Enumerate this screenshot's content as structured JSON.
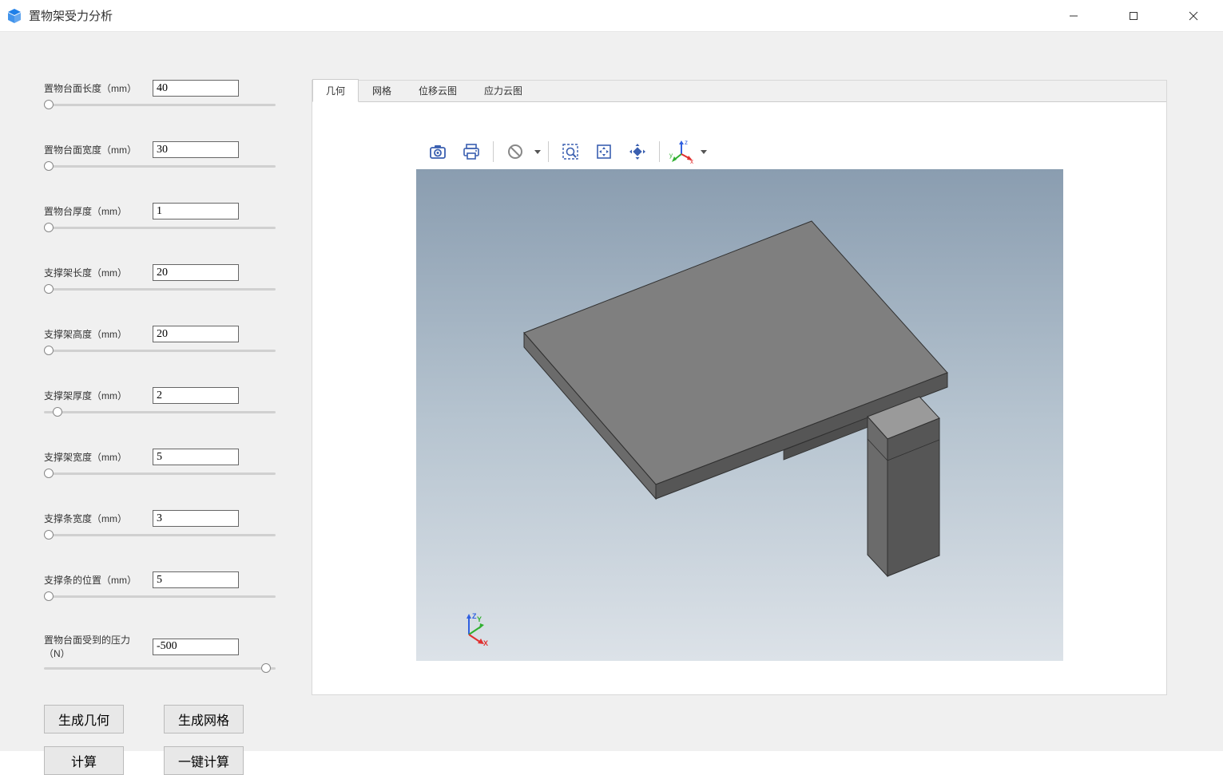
{
  "app": {
    "title": "置物架受力分析"
  },
  "parameters": [
    {
      "label": "置物台面长度（mm）",
      "value": "40",
      "thumb_pct": 2
    },
    {
      "label": "置物台面宽度（mm）",
      "value": "30",
      "thumb_pct": 2
    },
    {
      "label": "置物台厚度（mm）",
      "value": "1",
      "thumb_pct": 2
    },
    {
      "label": "支撑架长度（mm）",
      "value": "20",
      "thumb_pct": 2
    },
    {
      "label": "支撑架高度（mm）",
      "value": "20",
      "thumb_pct": 2
    },
    {
      "label": "支撑架厚度（mm）",
      "value": "2",
      "thumb_pct": 6
    },
    {
      "label": "支撑架宽度（mm）",
      "value": "5",
      "thumb_pct": 2
    },
    {
      "label": "支撑条宽度（mm）",
      "value": "3",
      "thumb_pct": 2
    },
    {
      "label": "支撑条的位置（mm）",
      "value": "5",
      "thumb_pct": 2
    },
    {
      "label": "置物台面受到的压力（N）",
      "value": "-500",
      "thumb_pct": 96
    }
  ],
  "buttons": {
    "generate_geometry": "生成几何",
    "generate_mesh": "生成网格",
    "calculate": "计算",
    "one_click_calc": "一键计算"
  },
  "tabs": [
    {
      "label": "几何",
      "active": true
    },
    {
      "label": "网格",
      "active": false
    },
    {
      "label": "位移云图",
      "active": false
    },
    {
      "label": "应力云图",
      "active": false
    }
  ],
  "toolbar_icons": {
    "snapshot": "snapshot-icon",
    "print": "print-icon",
    "bullseye": "bullseye-icon",
    "zoom_box": "zoom-box-icon",
    "pan": "pan-icon",
    "zoom_extents": "zoom-extents-icon",
    "axis": "axis-xyz-icon"
  },
  "geometry": {
    "type": "shelf_bracket",
    "top_plate_color": "#7f7f7f",
    "top_plate_dark": "#6b6b6b",
    "side_color": "#565656",
    "edge_color": "#303030",
    "bracket_color": "#9a9a9a",
    "bracket_dark": "#636363"
  },
  "axis_colors": {
    "x": "#e03030",
    "y": "#30b030",
    "z": "#3060e0"
  },
  "colors": {
    "titlebar_icon": "#2080e8",
    "toolbar_icon": "#3a5fb0",
    "toolbar_icon_alt": "#4a4a4a"
  }
}
